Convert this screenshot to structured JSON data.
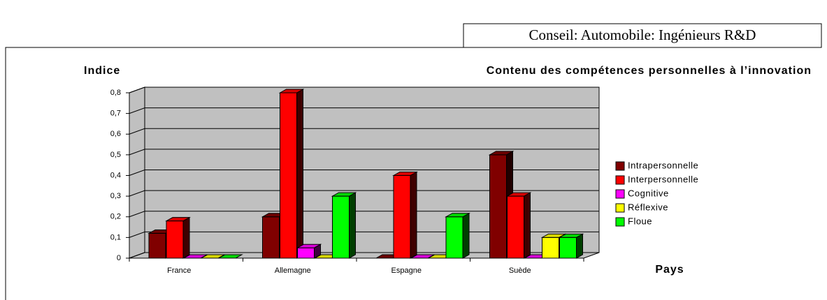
{
  "header": {
    "title": "Conseil: Automobile: Ingénieurs R&D"
  },
  "chart_data": {
    "type": "bar3d",
    "title": "Contenu des compétences personnelles à l’innovation",
    "y_label": "Indice",
    "x_label": "Pays",
    "categories": [
      "France",
      "Allemagne",
      "Espagne",
      "Suède"
    ],
    "series": [
      {
        "name": "Intrapersonnelle",
        "color": "#800000",
        "values": [
          0.12,
          0.2,
          0,
          0.5
        ]
      },
      {
        "name": "Interpersonnelle",
        "color": "#ff0000",
        "values": [
          0.18,
          0.8,
          0.4,
          0.3
        ]
      },
      {
        "name": "Cognitive",
        "color": "#ff00ff",
        "values": [
          0,
          0.05,
          0,
          0
        ]
      },
      {
        "name": "Réflexive",
        "color": "#ffff00",
        "values": [
          0,
          0,
          0,
          0.1
        ]
      },
      {
        "name": "Floue",
        "color": "#00ff00",
        "values": [
          0,
          0.3,
          0.2,
          0.1
        ]
      }
    ],
    "ylim": [
      0,
      0.8
    ],
    "yticks": [
      0,
      {
        "value": 0.1,
        "label": "0,1"
      },
      {
        "value": 0.2,
        "label": "0,2"
      },
      {
        "value": 0.3,
        "label": "0,3"
      },
      {
        "value": 0.4,
        "label": "0,4"
      },
      {
        "value": 0.5,
        "label": "0,5"
      },
      {
        "value": 0.6,
        "label": "0,6"
      },
      {
        "value": 0.7,
        "label": "0,7"
      },
      {
        "value": 0.8,
        "label": "0,8"
      }
    ],
    "grid": true,
    "legend": "right"
  }
}
